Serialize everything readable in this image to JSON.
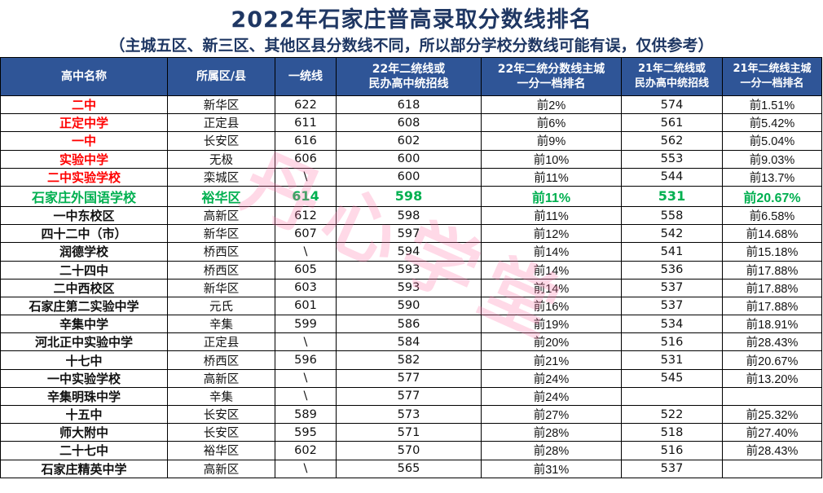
{
  "title": "2022年石家庄普高录取分数线排名",
  "subtitle": "（主城五区、新三区、其他区县分数线不同，所以部分学校分数线可能有误，仅供参考）",
  "watermark": "丹心学堂",
  "headers": {
    "name": "高中名称",
    "district": "所属区/县",
    "tier1": "一统线",
    "tier2_line1": "22年二统线或",
    "tier2_line2": "民办高中统招线",
    "rank22_line1": "22年二统分数线主城",
    "rank22_line2": "一分一档排名",
    "tier2_21_line1": "21年二统线或",
    "tier2_21_line2": "民办高中统招线",
    "rank21_line1": "21年二统线主城",
    "rank21_line2": "一分一档排名"
  },
  "rows": [
    {
      "name": "二中",
      "district": "新华区",
      "tier1": "622",
      "tier2": "618",
      "rank22": "前2%",
      "tier2_21": "574",
      "rank21": "前1.51%",
      "style": "red"
    },
    {
      "name": "正定中学",
      "district": "正定县",
      "tier1": "611",
      "tier2": "608",
      "rank22": "前6%",
      "tier2_21": "561",
      "rank21": "前5.42%",
      "style": "red"
    },
    {
      "name": "一中",
      "district": "长安区",
      "tier1": "616",
      "tier2": "602",
      "rank22": "前9%",
      "tier2_21": "562",
      "rank21": "前5.04%",
      "style": "red"
    },
    {
      "name": "实验中学",
      "district": "无极",
      "tier1": "606",
      "tier2": "600",
      "rank22": "前10%",
      "tier2_21": "553",
      "rank21": "前9.03%",
      "style": "red"
    },
    {
      "name": "二中实验学校",
      "district": "栾城区",
      "tier1": "\\",
      "tier2": "600",
      "rank22": "前11%",
      "tier2_21": "544",
      "rank21": "前13.7%",
      "style": "red"
    },
    {
      "name": "石家庄外国语学校",
      "district": "裕华区",
      "tier1": "614",
      "tier2": "598",
      "rank22": "前11%",
      "tier2_21": "531",
      "rank21": "前20.67%",
      "style": "green"
    },
    {
      "name": "一中东校区",
      "district": "高新区",
      "tier1": "612",
      "tier2": "598",
      "rank22": "前11%",
      "tier2_21": "558",
      "rank21": "前6.58%",
      "style": "normal"
    },
    {
      "name": "四十二中（市）",
      "district": "新华区",
      "tier1": "607",
      "tier2": "597",
      "rank22": "前12%",
      "tier2_21": "542",
      "rank21": "前14.68%",
      "style": "normal"
    },
    {
      "name": "润德学校",
      "district": "桥西区",
      "tier1": "\\",
      "tier2": "594",
      "rank22": "前14%",
      "tier2_21": "541",
      "rank21": "前15.18%",
      "style": "normal"
    },
    {
      "name": "二十四中",
      "district": "桥西区",
      "tier1": "605",
      "tier2": "593",
      "rank22": "前14%",
      "tier2_21": "536",
      "rank21": "前17.88%",
      "style": "normal"
    },
    {
      "name": "二中西校区",
      "district": "新华区",
      "tier1": "603",
      "tier2": "593",
      "rank22": "前14%",
      "tier2_21": "537",
      "rank21": "前17.88%",
      "style": "normal"
    },
    {
      "name": "石家庄第二实验中学",
      "district": "元氏",
      "tier1": "601",
      "tier2": "590",
      "rank22": "前16%",
      "tier2_21": "537",
      "rank21": "前17.88%",
      "style": "normal"
    },
    {
      "name": "辛集中学",
      "district": "辛集",
      "tier1": "599",
      "tier2": "586",
      "rank22": "前19%",
      "tier2_21": "534",
      "rank21": "前18.91%",
      "style": "normal"
    },
    {
      "name": "河北正中实验中学",
      "district": "正定县",
      "tier1": "\\",
      "tier2": "584",
      "rank22": "前20%",
      "tier2_21": "516",
      "rank21": "前28.43%",
      "style": "normal"
    },
    {
      "name": "十七中",
      "district": "桥西区",
      "tier1": "596",
      "tier2": "582",
      "rank22": "前21%",
      "tier2_21": "531",
      "rank21": "前20.67%",
      "style": "normal"
    },
    {
      "name": "一中实验学校",
      "district": "高新区",
      "tier1": "\\",
      "tier2": "577",
      "rank22": "前24%",
      "tier2_21": "545",
      "rank21": "前13.20%",
      "style": "normal"
    },
    {
      "name": "辛集明珠中学",
      "district": "辛集",
      "tier1": "\\",
      "tier2": "577",
      "rank22": "前24%",
      "tier2_21": "",
      "rank21": "",
      "style": "normal"
    },
    {
      "name": "十五中",
      "district": "长安区",
      "tier1": "589",
      "tier2": "573",
      "rank22": "前27%",
      "tier2_21": "522",
      "rank21": "前25.32%",
      "style": "normal"
    },
    {
      "name": "师大附中",
      "district": "长安区",
      "tier1": "595",
      "tier2": "571",
      "rank22": "前28%",
      "tier2_21": "518",
      "rank21": "前27.40%",
      "style": "normal"
    },
    {
      "name": "二十七中",
      "district": "裕华区",
      "tier1": "602",
      "tier2": "570",
      "rank22": "前28%",
      "tier2_21": "516",
      "rank21": "前28.43%",
      "style": "normal"
    },
    {
      "name": "石家庄精英中学",
      "district": "高新区",
      "tier1": "\\",
      "tier2": "565",
      "rank22": "前31%",
      "tier2_21": "537",
      "rank21": "",
      "style": "normal"
    }
  ]
}
